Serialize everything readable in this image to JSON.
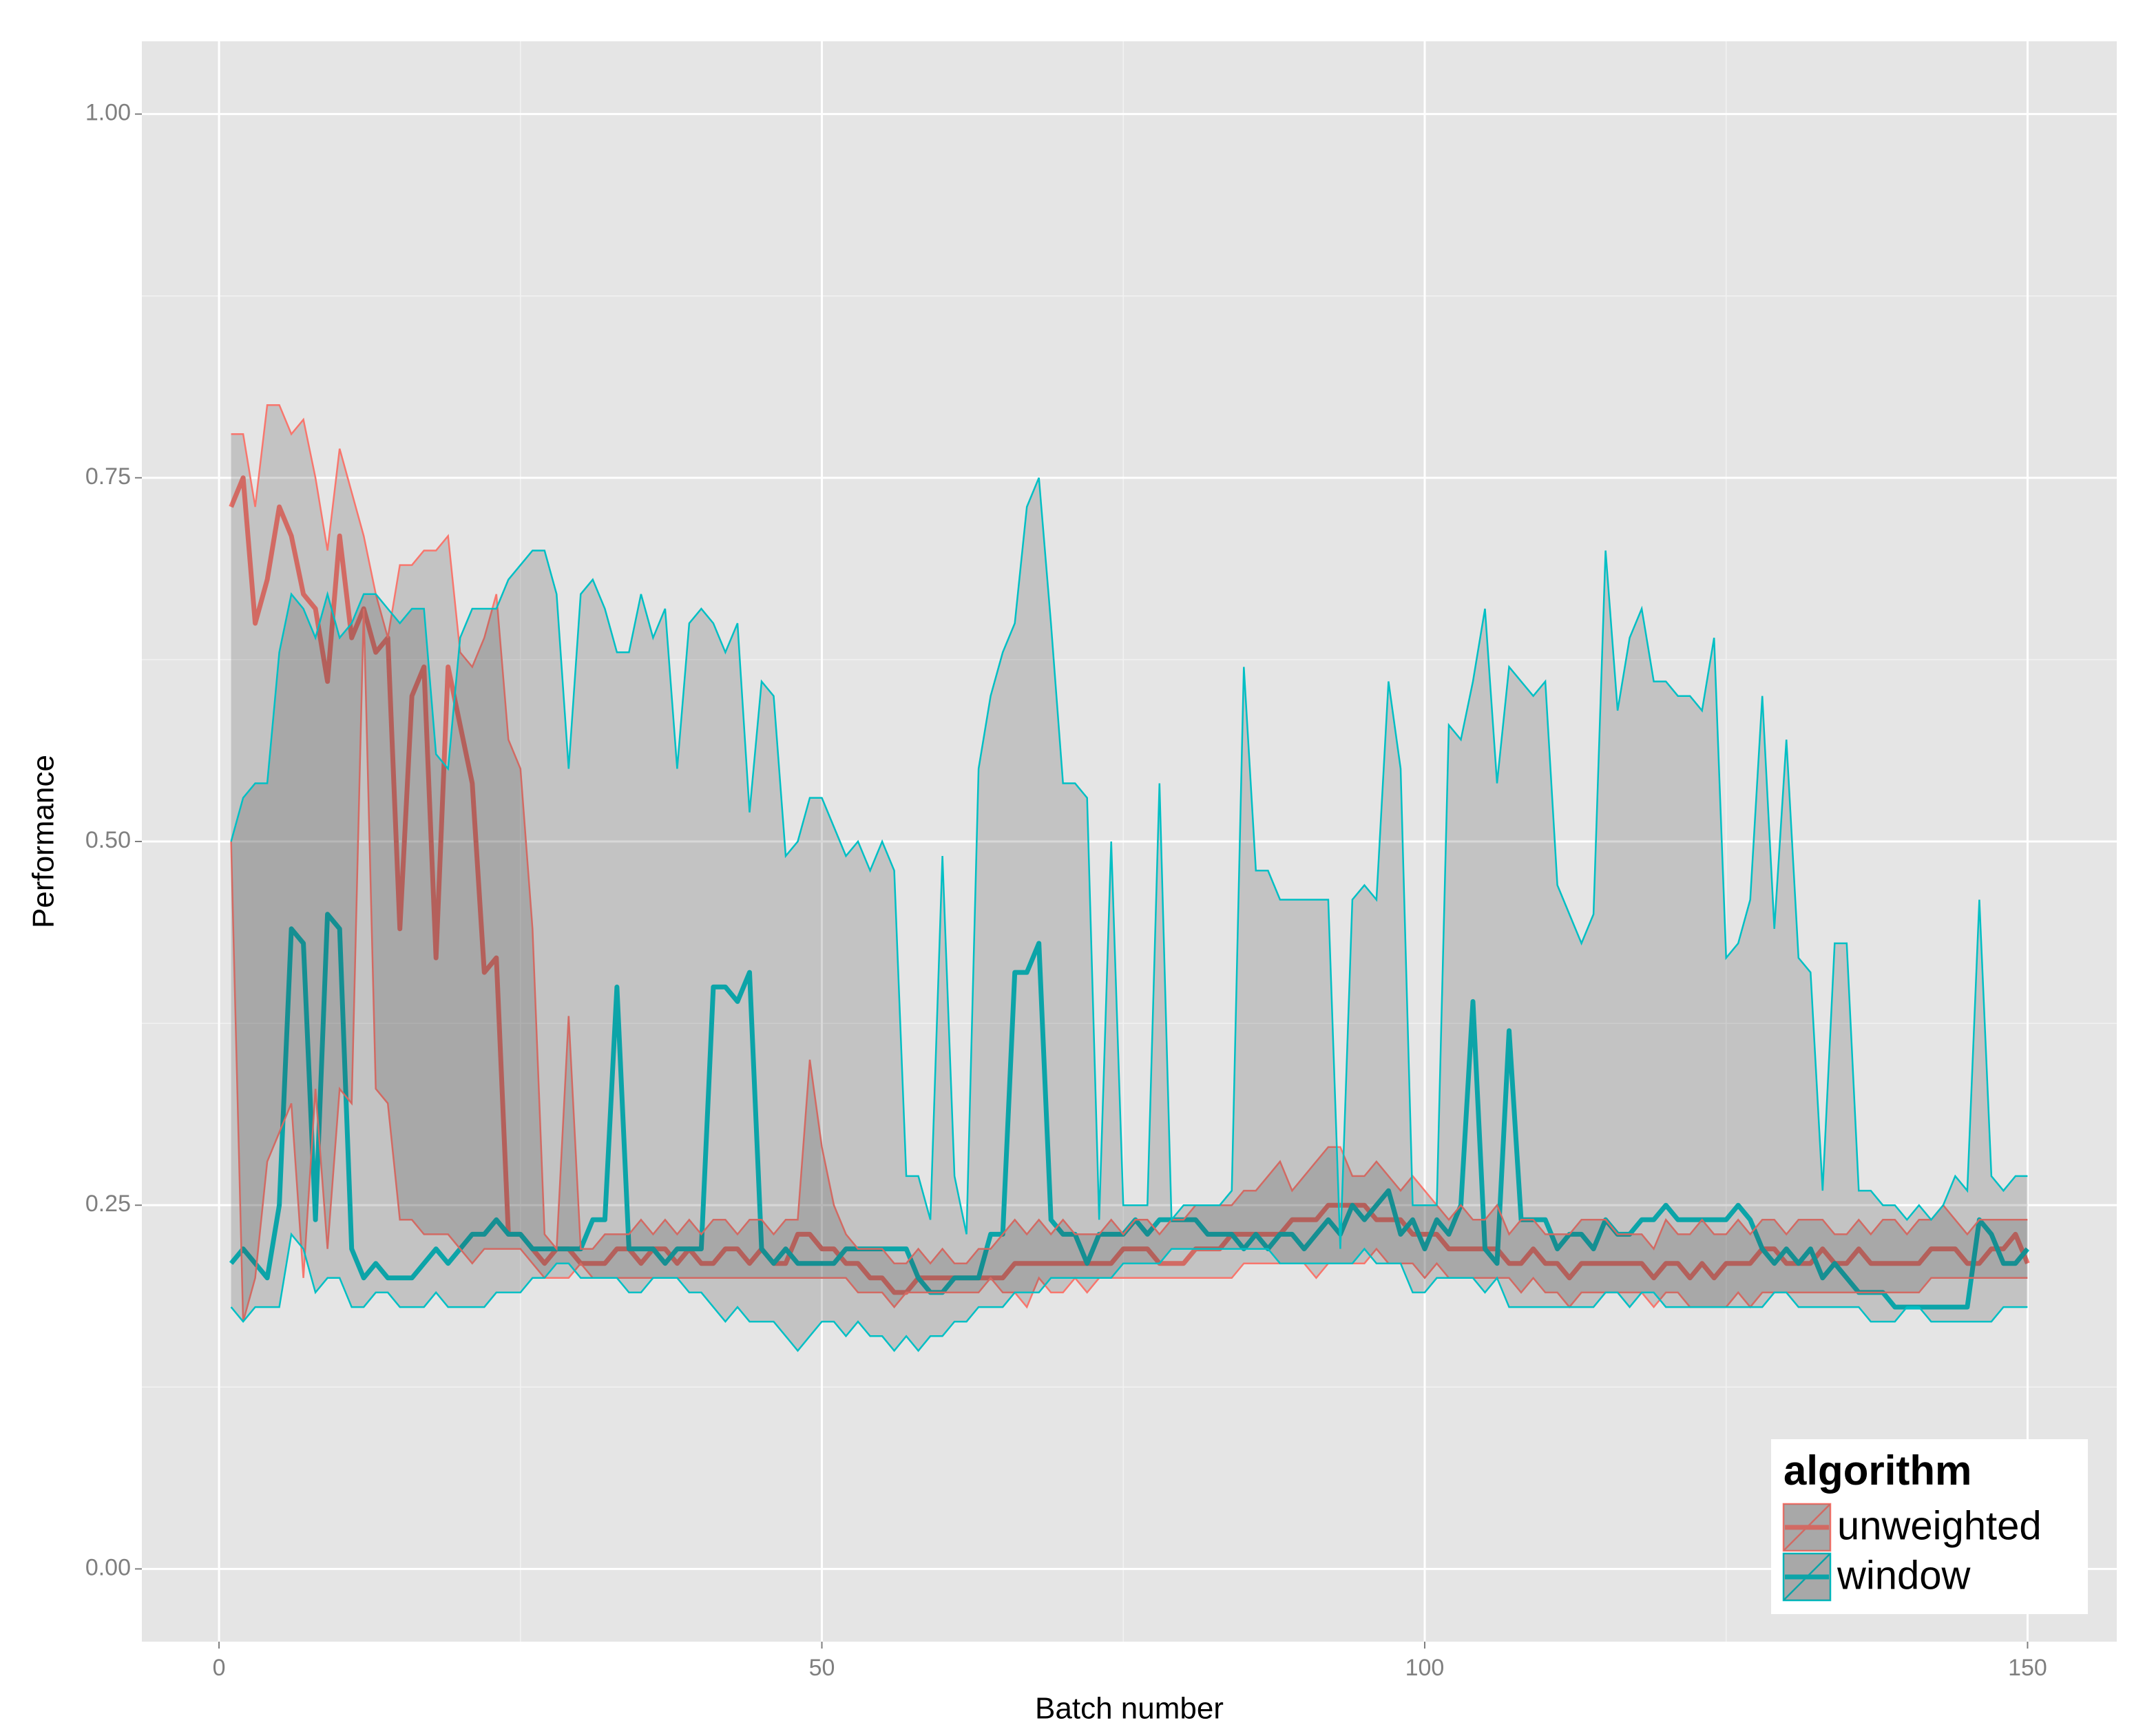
{
  "chart_data": {
    "type": "ribbon-line",
    "x_label": "Batch number",
    "y_label": "Performance",
    "xlim": [
      -6.4,
      157.4
    ],
    "ylim": [
      -0.05,
      1.05
    ],
    "xticks": [
      0,
      50,
      100,
      150
    ],
    "yticks": [
      {
        "value": 0,
        "label": "0.00"
      },
      {
        "value": 0.25,
        "label": "0.25"
      },
      {
        "value": 0.5,
        "label": "0.50"
      },
      {
        "value": 0.75,
        "label": "0.75"
      },
      {
        "value": 1,
        "label": "1.00"
      }
    ],
    "xminor": [
      25,
      75,
      125
    ],
    "yminor": [
      0.125,
      0.375,
      0.625,
      0.875
    ],
    "grid": true,
    "legend_title": "algorithm",
    "legend_position": "bottom-right",
    "x": [
      1,
      2,
      3,
      4,
      5,
      6,
      7,
      8,
      9,
      10,
      11,
      12,
      13,
      14,
      15,
      16,
      17,
      18,
      19,
      20,
      21,
      22,
      23,
      24,
      25,
      26,
      27,
      28,
      29,
      30,
      31,
      32,
      33,
      34,
      35,
      36,
      37,
      38,
      39,
      40,
      41,
      42,
      43,
      44,
      45,
      46,
      47,
      48,
      49,
      50,
      51,
      52,
      53,
      54,
      55,
      56,
      57,
      58,
      59,
      60,
      61,
      62,
      63,
      64,
      65,
      66,
      67,
      68,
      69,
      70,
      71,
      72,
      73,
      74,
      75,
      76,
      77,
      78,
      79,
      80,
      81,
      82,
      83,
      84,
      85,
      86,
      87,
      88,
      89,
      90,
      91,
      92,
      93,
      94,
      95,
      96,
      97,
      98,
      99,
      100,
      101,
      102,
      103,
      104,
      105,
      106,
      107,
      108,
      109,
      110,
      111,
      112,
      113,
      114,
      115,
      116,
      117,
      118,
      119,
      120,
      121,
      122,
      123,
      124,
      125,
      126,
      127,
      128,
      129,
      130,
      131,
      132,
      133,
      134,
      135,
      136,
      137,
      138,
      139,
      140,
      141,
      142,
      143,
      144,
      145,
      146,
      147,
      148,
      149,
      150
    ],
    "series": [
      {
        "name": "unweighted",
        "color": "#F8766D",
        "values": [
          0.73,
          0.75,
          0.65,
          0.68,
          0.73,
          0.71,
          0.67,
          0.66,
          0.61,
          0.71,
          0.64,
          0.66,
          0.63,
          0.64,
          0.44,
          0.6,
          0.62,
          0.42,
          0.62,
          0.58,
          0.54,
          0.41,
          0.42,
          0.23,
          0.23,
          0.22,
          0.21,
          0.22,
          0.22,
          0.21,
          0.21,
          0.21,
          0.22,
          0.22,
          0.21,
          0.22,
          0.22,
          0.21,
          0.22,
          0.21,
          0.21,
          0.22,
          0.22,
          0.21,
          0.22,
          0.21,
          0.21,
          0.23,
          0.23,
          0.22,
          0.22,
          0.21,
          0.21,
          0.2,
          0.2,
          0.19,
          0.19,
          0.2,
          0.2,
          0.2,
          0.2,
          0.2,
          0.2,
          0.2,
          0.2,
          0.21,
          0.21,
          0.21,
          0.21,
          0.21,
          0.21,
          0.21,
          0.21,
          0.21,
          0.22,
          0.22,
          0.22,
          0.21,
          0.21,
          0.21,
          0.22,
          0.22,
          0.22,
          0.23,
          0.23,
          0.23,
          0.23,
          0.23,
          0.24,
          0.24,
          0.24,
          0.25,
          0.25,
          0.25,
          0.25,
          0.24,
          0.24,
          0.24,
          0.23,
          0.23,
          0.23,
          0.22,
          0.22,
          0.22,
          0.22,
          0.22,
          0.21,
          0.21,
          0.22,
          0.21,
          0.21,
          0.2,
          0.21,
          0.21,
          0.21,
          0.21,
          0.21,
          0.21,
          0.2,
          0.21,
          0.21,
          0.2,
          0.21,
          0.2,
          0.21,
          0.21,
          0.21,
          0.22,
          0.22,
          0.21,
          0.21,
          0.21,
          0.22,
          0.21,
          0.21,
          0.22,
          0.21,
          0.21,
          0.21,
          0.21,
          0.21,
          0.22,
          0.22,
          0.22,
          0.21,
          0.21,
          0.22,
          0.22,
          0.23,
          0.21
        ],
        "upper": [
          0.78,
          0.78,
          0.73,
          0.8,
          0.8,
          0.78,
          0.79,
          0.75,
          0.7,
          0.77,
          0.74,
          0.71,
          0.67,
          0.64,
          0.69,
          0.69,
          0.7,
          0.7,
          0.71,
          0.63,
          0.62,
          0.64,
          0.67,
          0.57,
          0.55,
          0.44,
          0.23,
          0.22,
          0.38,
          0.22,
          0.22,
          0.23,
          0.23,
          0.23,
          0.24,
          0.23,
          0.24,
          0.23,
          0.24,
          0.23,
          0.24,
          0.24,
          0.23,
          0.24,
          0.24,
          0.23,
          0.24,
          0.24,
          0.35,
          0.29,
          0.25,
          0.23,
          0.22,
          0.22,
          0.22,
          0.21,
          0.21,
          0.22,
          0.21,
          0.22,
          0.21,
          0.21,
          0.22,
          0.22,
          0.23,
          0.24,
          0.23,
          0.24,
          0.23,
          0.24,
          0.23,
          0.23,
          0.23,
          0.24,
          0.23,
          0.24,
          0.24,
          0.23,
          0.24,
          0.24,
          0.25,
          0.25,
          0.25,
          0.25,
          0.26,
          0.26,
          0.27,
          0.28,
          0.26,
          0.27,
          0.28,
          0.29,
          0.29,
          0.27,
          0.27,
          0.28,
          0.27,
          0.26,
          0.27,
          0.26,
          0.25,
          0.24,
          0.25,
          0.24,
          0.24,
          0.25,
          0.23,
          0.24,
          0.24,
          0.23,
          0.23,
          0.23,
          0.24,
          0.24,
          0.24,
          0.23,
          0.23,
          0.23,
          0.22,
          0.24,
          0.23,
          0.23,
          0.24,
          0.23,
          0.23,
          0.24,
          0.23,
          0.24,
          0.24,
          0.23,
          0.24,
          0.24,
          0.24,
          0.23,
          0.23,
          0.24,
          0.23,
          0.24,
          0.24,
          0.23,
          0.24,
          0.24,
          0.25,
          0.24,
          0.23,
          0.24,
          0.24,
          0.24,
          0.24,
          0.24
        ],
        "lower": [
          0.5,
          0.17,
          0.2,
          0.28,
          0.3,
          0.32,
          0.2,
          0.33,
          0.22,
          0.33,
          0.32,
          0.66,
          0.33,
          0.32,
          0.24,
          0.24,
          0.23,
          0.23,
          0.23,
          0.22,
          0.21,
          0.22,
          0.22,
          0.22,
          0.22,
          0.21,
          0.2,
          0.2,
          0.2,
          0.21,
          0.2,
          0.2,
          0.2,
          0.2,
          0.2,
          0.2,
          0.2,
          0.2,
          0.2,
          0.2,
          0.2,
          0.2,
          0.2,
          0.2,
          0.2,
          0.2,
          0.2,
          0.2,
          0.2,
          0.2,
          0.2,
          0.2,
          0.19,
          0.19,
          0.19,
          0.18,
          0.19,
          0.19,
          0.19,
          0.19,
          0.19,
          0.19,
          0.19,
          0.2,
          0.19,
          0.19,
          0.18,
          0.2,
          0.19,
          0.19,
          0.2,
          0.19,
          0.2,
          0.2,
          0.2,
          0.2,
          0.2,
          0.2,
          0.2,
          0.2,
          0.2,
          0.2,
          0.2,
          0.2,
          0.21,
          0.21,
          0.21,
          0.21,
          0.21,
          0.21,
          0.2,
          0.21,
          0.21,
          0.21,
          0.21,
          0.22,
          0.21,
          0.21,
          0.21,
          0.2,
          0.21,
          0.2,
          0.2,
          0.2,
          0.2,
          0.2,
          0.2,
          0.19,
          0.2,
          0.19,
          0.19,
          0.18,
          0.19,
          0.19,
          0.19,
          0.19,
          0.19,
          0.19,
          0.18,
          0.19,
          0.19,
          0.18,
          0.18,
          0.18,
          0.18,
          0.19,
          0.18,
          0.19,
          0.19,
          0.19,
          0.19,
          0.19,
          0.19,
          0.19,
          0.19,
          0.19,
          0.19,
          0.19,
          0.19,
          0.19,
          0.19,
          0.2,
          0.2,
          0.2,
          0.2,
          0.2,
          0.2,
          0.2,
          0.2,
          0.2
        ]
      },
      {
        "name": "window",
        "color": "#00BFC4",
        "values": [
          0.21,
          0.22,
          0.21,
          0.2,
          0.25,
          0.44,
          0.43,
          0.24,
          0.45,
          0.44,
          0.22,
          0.2,
          0.21,
          0.2,
          0.2,
          0.2,
          0.21,
          0.22,
          0.21,
          0.22,
          0.23,
          0.23,
          0.24,
          0.23,
          0.23,
          0.22,
          0.22,
          0.22,
          0.22,
          0.22,
          0.24,
          0.24,
          0.4,
          0.22,
          0.22,
          0.22,
          0.21,
          0.22,
          0.22,
          0.22,
          0.4,
          0.4,
          0.39,
          0.41,
          0.22,
          0.21,
          0.22,
          0.21,
          0.21,
          0.21,
          0.21,
          0.22,
          0.22,
          0.22,
          0.22,
          0.22,
          0.22,
          0.2,
          0.19,
          0.19,
          0.2,
          0.2,
          0.2,
          0.23,
          0.23,
          0.41,
          0.41,
          0.43,
          0.24,
          0.23,
          0.23,
          0.21,
          0.23,
          0.23,
          0.23,
          0.24,
          0.23,
          0.24,
          0.24,
          0.24,
          0.24,
          0.23,
          0.23,
          0.23,
          0.22,
          0.23,
          0.22,
          0.23,
          0.23,
          0.22,
          0.23,
          0.24,
          0.23,
          0.25,
          0.24,
          0.25,
          0.26,
          0.23,
          0.24,
          0.22,
          0.24,
          0.23,
          0.25,
          0.39,
          0.22,
          0.21,
          0.37,
          0.24,
          0.24,
          0.24,
          0.22,
          0.23,
          0.23,
          0.22,
          0.24,
          0.23,
          0.23,
          0.24,
          0.24,
          0.25,
          0.24,
          0.24,
          0.24,
          0.24,
          0.24,
          0.25,
          0.24,
          0.22,
          0.21,
          0.22,
          0.21,
          0.22,
          0.2,
          0.21,
          0.2,
          0.19,
          0.19,
          0.19,
          0.18,
          0.18,
          0.18,
          0.18,
          0.18,
          0.18,
          0.18,
          0.24,
          0.23,
          0.21,
          0.21,
          0.22
        ],
        "upper": [
          0.5,
          0.53,
          0.54,
          0.54,
          0.63,
          0.67,
          0.66,
          0.64,
          0.67,
          0.64,
          0.65,
          0.67,
          0.67,
          0.66,
          0.65,
          0.66,
          0.66,
          0.56,
          0.55,
          0.64,
          0.66,
          0.66,
          0.66,
          0.68,
          0.69,
          0.7,
          0.7,
          0.67,
          0.55,
          0.67,
          0.68,
          0.66,
          0.63,
          0.63,
          0.67,
          0.64,
          0.66,
          0.55,
          0.65,
          0.66,
          0.65,
          0.63,
          0.65,
          0.52,
          0.61,
          0.6,
          0.49,
          0.5,
          0.53,
          0.53,
          0.51,
          0.49,
          0.5,
          0.48,
          0.5,
          0.48,
          0.27,
          0.27,
          0.24,
          0.49,
          0.27,
          0.23,
          0.55,
          0.6,
          0.63,
          0.65,
          0.73,
          0.75,
          0.65,
          0.54,
          0.54,
          0.53,
          0.24,
          0.5,
          0.25,
          0.25,
          0.25,
          0.54,
          0.24,
          0.25,
          0.25,
          0.25,
          0.25,
          0.26,
          0.62,
          0.48,
          0.48,
          0.46,
          0.46,
          0.46,
          0.46,
          0.46,
          0.22,
          0.46,
          0.47,
          0.46,
          0.61,
          0.55,
          0.25,
          0.25,
          0.25,
          0.58,
          0.57,
          0.61,
          0.66,
          0.54,
          0.62,
          0.61,
          0.6,
          0.61,
          0.47,
          0.45,
          0.43,
          0.45,
          0.7,
          0.59,
          0.64,
          0.66,
          0.61,
          0.61,
          0.6,
          0.6,
          0.59,
          0.64,
          0.42,
          0.43,
          0.46,
          0.6,
          0.44,
          0.57,
          0.42,
          0.41,
          0.26,
          0.43,
          0.43,
          0.26,
          0.26,
          0.25,
          0.25,
          0.24,
          0.25,
          0.24,
          0.25,
          0.27,
          0.26,
          0.46,
          0.27,
          0.26,
          0.27,
          0.27
        ],
        "lower": [
          0.18,
          0.17,
          0.18,
          0.18,
          0.18,
          0.23,
          0.22,
          0.19,
          0.2,
          0.2,
          0.18,
          0.18,
          0.19,
          0.19,
          0.18,
          0.18,
          0.18,
          0.19,
          0.18,
          0.18,
          0.18,
          0.18,
          0.19,
          0.19,
          0.19,
          0.2,
          0.2,
          0.21,
          0.21,
          0.2,
          0.2,
          0.2,
          0.2,
          0.19,
          0.19,
          0.2,
          0.2,
          0.2,
          0.19,
          0.19,
          0.18,
          0.17,
          0.18,
          0.17,
          0.17,
          0.17,
          0.16,
          0.15,
          0.16,
          0.17,
          0.17,
          0.16,
          0.17,
          0.16,
          0.16,
          0.15,
          0.16,
          0.15,
          0.16,
          0.16,
          0.17,
          0.17,
          0.18,
          0.18,
          0.18,
          0.19,
          0.19,
          0.19,
          0.2,
          0.2,
          0.2,
          0.2,
          0.2,
          0.2,
          0.21,
          0.21,
          0.21,
          0.21,
          0.22,
          0.22,
          0.22,
          0.22,
          0.22,
          0.22,
          0.22,
          0.22,
          0.22,
          0.21,
          0.21,
          0.21,
          0.21,
          0.21,
          0.21,
          0.21,
          0.22,
          0.21,
          0.21,
          0.21,
          0.19,
          0.19,
          0.2,
          0.2,
          0.2,
          0.2,
          0.19,
          0.2,
          0.18,
          0.18,
          0.18,
          0.18,
          0.18,
          0.18,
          0.18,
          0.18,
          0.19,
          0.19,
          0.18,
          0.19,
          0.19,
          0.18,
          0.18,
          0.18,
          0.18,
          0.18,
          0.18,
          0.18,
          0.18,
          0.18,
          0.19,
          0.19,
          0.18,
          0.18,
          0.18,
          0.18,
          0.18,
          0.18,
          0.17,
          0.17,
          0.17,
          0.18,
          0.18,
          0.17,
          0.17,
          0.17,
          0.17,
          0.17,
          0.17,
          0.18,
          0.18,
          0.18
        ]
      }
    ]
  }
}
